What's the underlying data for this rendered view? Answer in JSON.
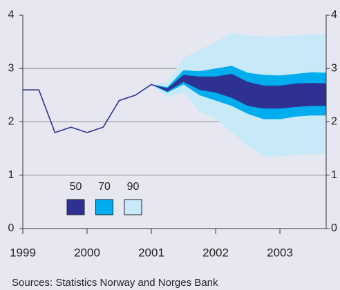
{
  "chart_data": {
    "type": "fan",
    "x": [
      1999,
      1999.25,
      1999.5,
      1999.75,
      2000,
      2000.25,
      2000.5,
      2000.75,
      2001,
      2001.25,
      2001.5,
      2001.75,
      2002,
      2002.25,
      2002.5,
      2002.75,
      2003,
      2003.25,
      2003.5,
      2003.72
    ],
    "line": {
      "color": "#2e3192",
      "values": [
        2.6,
        2.6,
        1.8,
        1.9,
        1.8,
        1.9,
        2.4,
        2.5,
        2.7,
        2.6,
        2.85,
        2.75,
        2.75,
        2.7,
        2.55,
        2.45,
        2.45,
        2.5,
        2.5,
        2.5
      ]
    },
    "series": [
      {
        "name": "90",
        "color": "#c8e9f8",
        "upper": [
          null,
          null,
          null,
          null,
          null,
          null,
          null,
          null,
          2.7,
          2.75,
          3.2,
          3.35,
          3.5,
          3.67,
          3.62,
          3.6,
          3.6,
          3.62,
          3.65,
          3.65
        ],
        "lower": [
          null,
          null,
          null,
          null,
          null,
          null,
          null,
          null,
          2.7,
          2.45,
          2.55,
          2.2,
          2.05,
          1.8,
          1.55,
          1.35,
          1.35,
          1.38,
          1.4,
          1.4
        ]
      },
      {
        "name": "70",
        "color": "#00aeef",
        "upper": [
          null,
          null,
          null,
          null,
          null,
          null,
          null,
          null,
          2.7,
          2.65,
          2.97,
          2.95,
          3.0,
          3.05,
          2.92,
          2.88,
          2.87,
          2.9,
          2.93,
          2.92
        ],
        "lower": [
          null,
          null,
          null,
          null,
          null,
          null,
          null,
          null,
          2.7,
          2.55,
          2.7,
          2.5,
          2.4,
          2.3,
          2.15,
          2.05,
          2.05,
          2.1,
          2.12,
          2.12
        ]
      },
      {
        "name": "50",
        "color": "#2e3192",
        "upper": [
          null,
          null,
          null,
          null,
          null,
          null,
          null,
          null,
          2.7,
          2.63,
          2.88,
          2.85,
          2.85,
          2.9,
          2.75,
          2.68,
          2.68,
          2.72,
          2.73,
          2.72
        ],
        "lower": [
          null,
          null,
          null,
          null,
          null,
          null,
          null,
          null,
          2.7,
          2.57,
          2.75,
          2.6,
          2.55,
          2.45,
          2.3,
          2.25,
          2.25,
          2.28,
          2.3,
          2.3
        ]
      }
    ],
    "legend_order": [
      "50",
      "70",
      "90"
    ],
    "xlim": [
      1999,
      2003.72
    ],
    "xticks": [
      1999,
      2000,
      2001,
      2002,
      2003
    ],
    "ylim": [
      0,
      4
    ],
    "yticks": [
      0,
      1,
      2,
      3,
      4
    ],
    "grid": true,
    "source": "Sources: Statistics Norway and Norges Bank"
  }
}
